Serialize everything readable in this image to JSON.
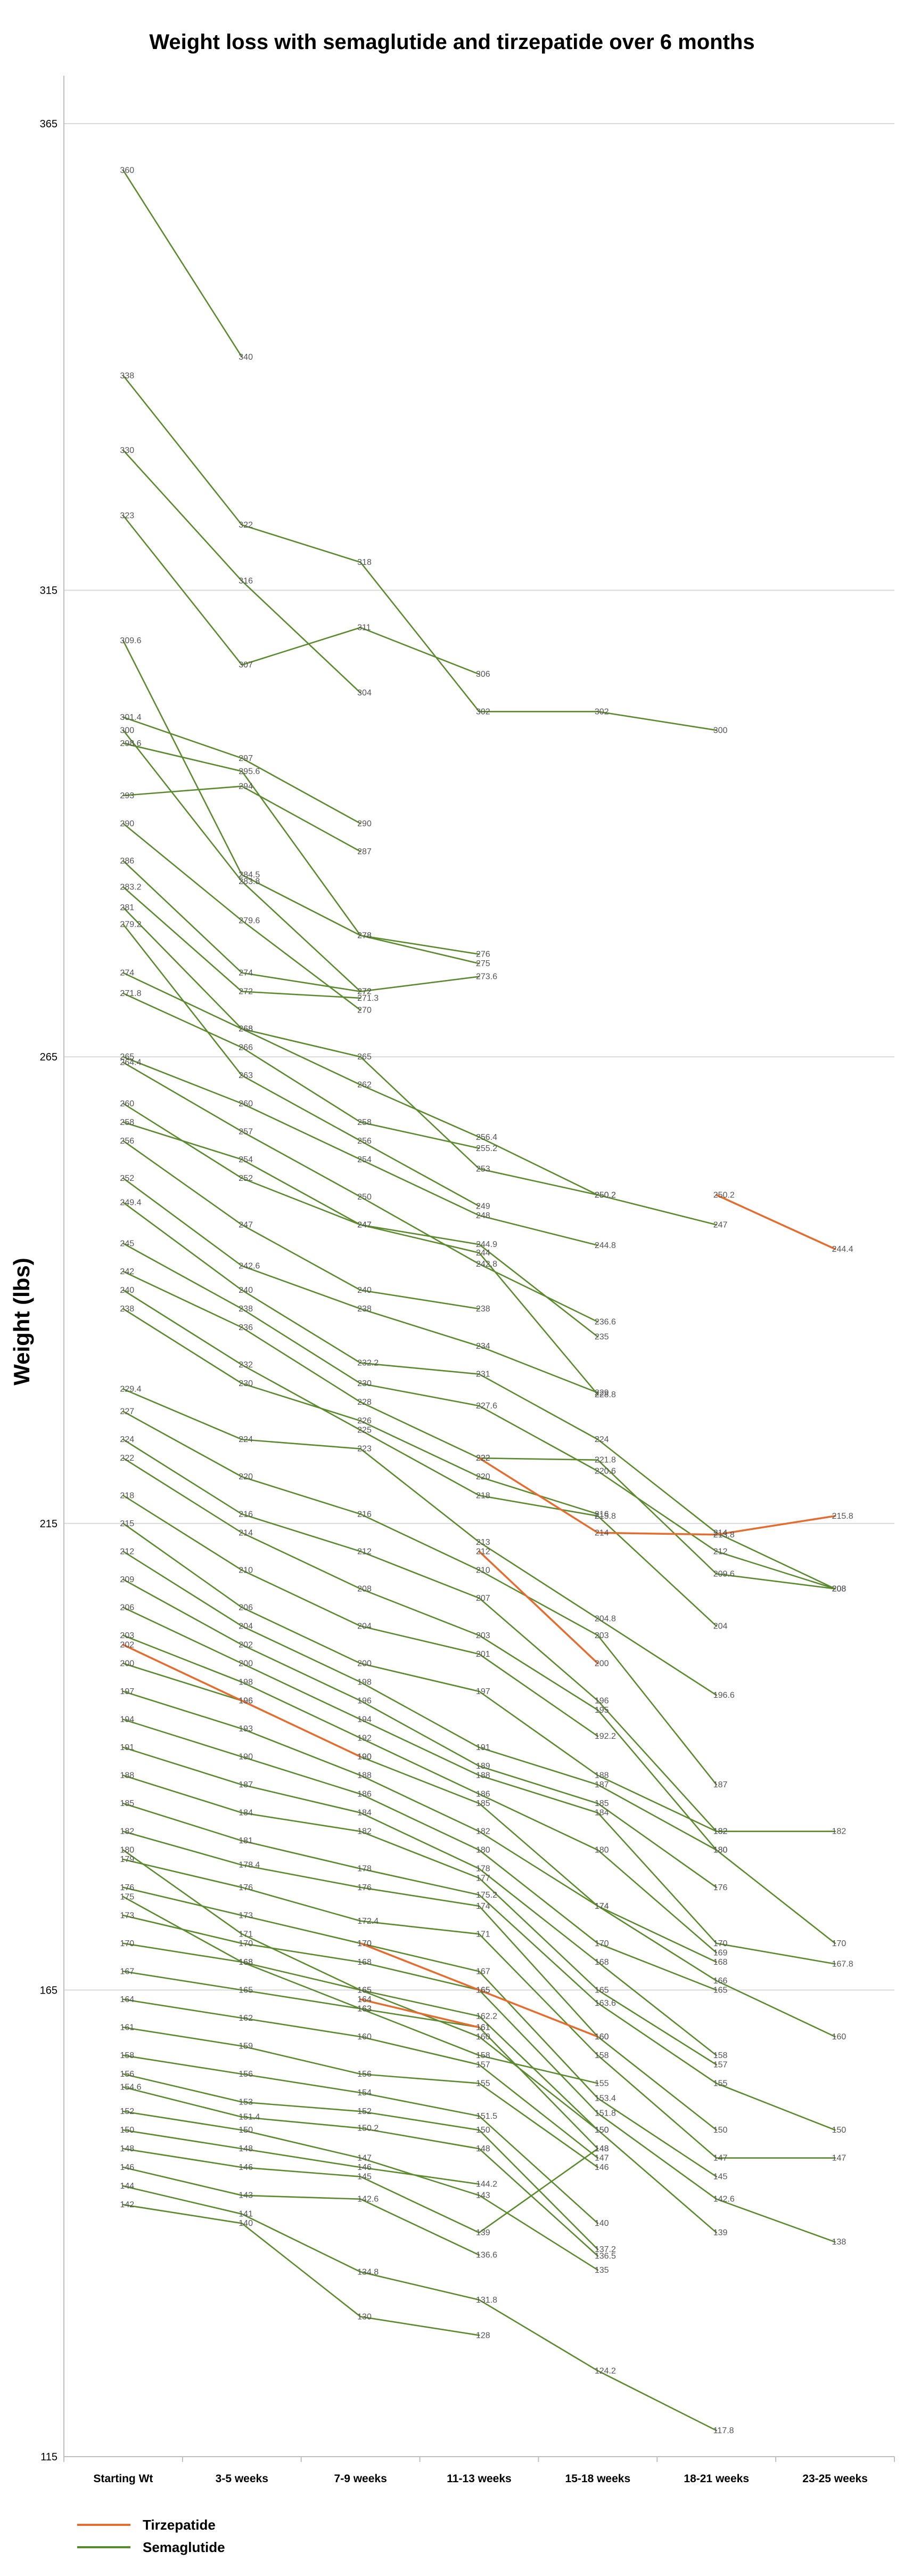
{
  "chart_data": {
    "type": "line",
    "title": "Weight loss with semaglutide and tirzepatide over 6 months",
    "ylabel": "Weight (lbs)",
    "xlabel": "",
    "categories": [
      "Starting Wt",
      "3-5 weeks",
      "7-9 weeks",
      "11-13 weeks",
      "15-18 weeks",
      "18-21 weeks",
      "23-25 weeks"
    ],
    "ylim": [
      115,
      365
    ],
    "yticks": [
      115,
      165,
      215,
      265,
      315,
      365
    ],
    "grid": true,
    "legend": {
      "placement": "bottom-left",
      "entries": [
        {
          "name": "Tirzepatide",
          "color": "#E46C2E"
        },
        {
          "name": "Semaglutide",
          "color": "#5B8A2E"
        }
      ]
    },
    "colors": {
      "Tirzepatide": "#E46C2E",
      "Semaglutide": "#5B8A2E",
      "grid": "#D9D9D9",
      "labels": "#555555"
    },
    "series": [
      {
        "group": "Semaglutide",
        "values": [
          360,
          340,
          null,
          null,
          null,
          null,
          null
        ]
      },
      {
        "group": "Semaglutide",
        "values": [
          338,
          322,
          318,
          302,
          302,
          300,
          null
        ]
      },
      {
        "group": "Semaglutide",
        "values": [
          330,
          316,
          304,
          null,
          null,
          null,
          null
        ]
      },
      {
        "group": "Semaglutide",
        "values": [
          323,
          307,
          311,
          306,
          null,
          null,
          null
        ]
      },
      {
        "group": "Semaglutide",
        "values": [
          309.6,
          284.5,
          278,
          275,
          null,
          null,
          null
        ]
      },
      {
        "group": "Semaglutide",
        "values": [
          300,
          283.8,
          272,
          null,
          null,
          null,
          null
        ]
      },
      {
        "group": "Semaglutide",
        "values": [
          301.4,
          297,
          290,
          null,
          null,
          null,
          null
        ]
      },
      {
        "group": "Semaglutide",
        "values": [
          298.6,
          295.6,
          278,
          276,
          null,
          null,
          null
        ]
      },
      {
        "group": "Semaglutide",
        "values": [
          293,
          294,
          287,
          null,
          null,
          null,
          null
        ]
      },
      {
        "group": "Semaglutide",
        "values": [
          290,
          279.6,
          270,
          null,
          null,
          null,
          null
        ]
      },
      {
        "group": "Semaglutide",
        "values": [
          286,
          274,
          272,
          273.6,
          null,
          null,
          null
        ]
      },
      {
        "group": "Semaglutide",
        "values": [
          283.2,
          272,
          271.3,
          null,
          null,
          null,
          null
        ]
      },
      {
        "group": "Semaglutide",
        "values": [
          281,
          268,
          262,
          256.4,
          250.2,
          247,
          null
        ]
      },
      {
        "group": "Semaglutide",
        "values": [
          279.2,
          263,
          256,
          249,
          null,
          null,
          null
        ]
      },
      {
        "group": "Semaglutide",
        "values": [
          274,
          268,
          265,
          253,
          250.2,
          null,
          null
        ]
      },
      {
        "group": "Semaglutide",
        "values": [
          271.8,
          266,
          258,
          255.2,
          null,
          null,
          null
        ]
      },
      {
        "group": "Semaglutide",
        "values": [
          265,
          260,
          254,
          248,
          244.8,
          null,
          null
        ]
      },
      {
        "group": "Semaglutide",
        "values": [
          264.4,
          257,
          250,
          242.8,
          236.6,
          null,
          null
        ]
      },
      {
        "group": "Semaglutide",
        "values": [
          260,
          252,
          247,
          244.9,
          235,
          null,
          null
        ]
      },
      {
        "group": "Semaglutide",
        "values": [
          258,
          254,
          247,
          244,
          228.8,
          null,
          null
        ]
      },
      {
        "group": "Semaglutide",
        "values": [
          256,
          247,
          240,
          238,
          null,
          null,
          null
        ]
      },
      {
        "group": "Semaglutide",
        "values": [
          252,
          242.6,
          238,
          234,
          229,
          null,
          null
        ]
      },
      {
        "group": "Semaglutide",
        "values": [
          249.4,
          240,
          232.2,
          231,
          224,
          214,
          208
        ]
      },
      {
        "group": "Semaglutide",
        "values": [
          245,
          238,
          230,
          227.6,
          220.6,
          212,
          208
        ]
      },
      {
        "group": "Semaglutide",
        "values": [
          242,
          236,
          228,
          222,
          221.8,
          209.6,
          208
        ]
      },
      {
        "group": "Semaglutide",
        "values": [
          240,
          232,
          225,
          218,
          215.8,
          204,
          null
        ]
      },
      {
        "group": "Semaglutide",
        "values": [
          238,
          230,
          226,
          220,
          216,
          null,
          null
        ]
      },
      {
        "group": "Semaglutide",
        "values": [
          229.4,
          224,
          223,
          213,
          204.8,
          196.6,
          null
        ]
      },
      {
        "group": "Semaglutide",
        "values": [
          227,
          220,
          216,
          210,
          203,
          187,
          null
        ]
      },
      {
        "group": "Semaglutide",
        "values": [
          224,
          216,
          212,
          207,
          196,
          182,
          182
        ]
      },
      {
        "group": "Semaglutide",
        "values": [
          222,
          214,
          208,
          203,
          195,
          180,
          null
        ]
      },
      {
        "group": "Semaglutide",
        "values": [
          218,
          210,
          204,
          201,
          192.2,
          null,
          null
        ]
      },
      {
        "group": "Semaglutide",
        "values": [
          215,
          206,
          200,
          197,
          188,
          182,
          null
        ]
      },
      {
        "group": "Semaglutide",
        "values": [
          212,
          204,
          198,
          191,
          187,
          180,
          170
        ]
      },
      {
        "group": "Semaglutide",
        "values": [
          209,
          202,
          196,
          189,
          185,
          176,
          null
        ]
      },
      {
        "group": "Semaglutide",
        "values": [
          206,
          200,
          194,
          188,
          184,
          170,
          167.8
        ]
      },
      {
        "group": "Semaglutide",
        "values": [
          203,
          198,
          192,
          186,
          180,
          169,
          null
        ]
      },
      {
        "group": "Semaglutide",
        "values": [
          200,
          196,
          190,
          185,
          174,
          168,
          null
        ]
      },
      {
        "group": "Semaglutide",
        "values": [
          197,
          193,
          188,
          182,
          174,
          166,
          160
        ]
      },
      {
        "group": "Semaglutide",
        "values": [
          194,
          190,
          186,
          180,
          170,
          165,
          null
        ]
      },
      {
        "group": "Semaglutide",
        "values": [
          191,
          187,
          184,
          178,
          168,
          158,
          null
        ]
      },
      {
        "group": "Semaglutide",
        "values": [
          188,
          184,
          182,
          177,
          165,
          157,
          null
        ]
      },
      {
        "group": "Semaglutide",
        "values": [
          185,
          181,
          178,
          175.2,
          163.6,
          155,
          150
        ]
      },
      {
        "group": "Semaglutide",
        "values": [
          182,
          178.4,
          176,
          174,
          160,
          150,
          null
        ]
      },
      {
        "group": "Semaglutide",
        "values": [
          179,
          176,
          172.4,
          171,
          158,
          147,
          147
        ]
      },
      {
        "group": "Semaglutide",
        "values": [
          176,
          173,
          170,
          167,
          153.4,
          145,
          null
        ]
      },
      {
        "group": "Semaglutide",
        "values": [
          173,
          170,
          168,
          165,
          151.8,
          142.6,
          138
        ]
      },
      {
        "group": "Semaglutide",
        "values": [
          170,
          168,
          165,
          162.2,
          150,
          139,
          null
        ]
      },
      {
        "group": "Semaglutide",
        "values": [
          167,
          165,
          163,
          161,
          148,
          null,
          null
        ]
      },
      {
        "group": "Semaglutide",
        "values": [
          164,
          162,
          160,
          157,
          147,
          null,
          null
        ]
      },
      {
        "group": "Semaglutide",
        "values": [
          161,
          159,
          156,
          155,
          146,
          null,
          null
        ]
      },
      {
        "group": "Semaglutide",
        "values": [
          158,
          156,
          154,
          151.5,
          140,
          null,
          null
        ]
      },
      {
        "group": "Semaglutide",
        "values": [
          156,
          153,
          152,
          150,
          137.2,
          null,
          null
        ]
      },
      {
        "group": "Semaglutide",
        "values": [
          154.6,
          151.4,
          150.2,
          148,
          136.5,
          null,
          null
        ]
      },
      {
        "group": "Semaglutide",
        "values": [
          152,
          150,
          147,
          143,
          135,
          null,
          null
        ]
      },
      {
        "group": "Semaglutide",
        "values": [
          150,
          148,
          146,
          144.2,
          null,
          null,
          null
        ]
      },
      {
        "group": "Semaglutide",
        "values": [
          148,
          146,
          145,
          139,
          148,
          null,
          null
        ]
      },
      {
        "group": "Semaglutide",
        "values": [
          146,
          143,
          142.6,
          136.6,
          null,
          null,
          null
        ]
      },
      {
        "group": "Semaglutide",
        "values": [
          144,
          141,
          134.8,
          131.8,
          124.2,
          117.8,
          null
        ]
      },
      {
        "group": "Semaglutide",
        "values": [
          142,
          140,
          130,
          128,
          null,
          null,
          null
        ]
      },
      {
        "group": "Semaglutide",
        "values": [
          180,
          171,
          165,
          160,
          150,
          null,
          null
        ]
      },
      {
        "group": "Semaglutide",
        "values": [
          175,
          168,
          163,
          158,
          155,
          null,
          null
        ]
      },
      {
        "group": "Tirzepatide",
        "values": [
          null,
          null,
          null,
          null,
          null,
          250.2,
          244.4
        ]
      },
      {
        "group": "Tirzepatide",
        "values": [
          null,
          null,
          null,
          222,
          214,
          213.8,
          215.8
        ]
      },
      {
        "group": "Tirzepatide",
        "values": [
          null,
          null,
          null,
          212,
          200,
          null,
          null
        ]
      },
      {
        "group": "Tirzepatide",
        "values": [
          202,
          196,
          190,
          null,
          null,
          null,
          null
        ]
      },
      {
        "group": "Tirzepatide",
        "values": [
          null,
          null,
          170,
          165,
          160,
          null,
          null
        ]
      },
      {
        "group": "Tirzepatide",
        "values": [
          null,
          null,
          164,
          161,
          null,
          null,
          null
        ]
      }
    ]
  }
}
